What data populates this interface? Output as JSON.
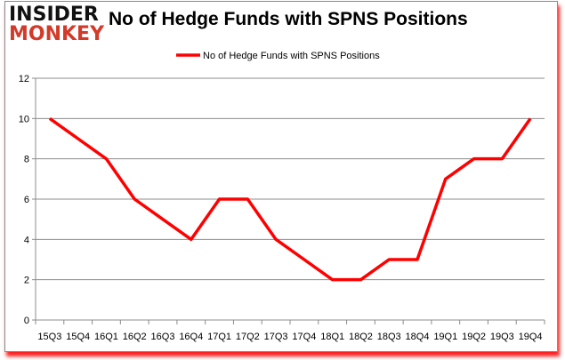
{
  "logo": {
    "line1": "INSIDER",
    "line2": "MONKEY"
  },
  "chart_data": {
    "type": "line",
    "title": "No of Hedge Funds with SPNS Positions",
    "xlabel": "",
    "ylabel": "",
    "categories": [
      "15Q3",
      "15Q4",
      "16Q1",
      "16Q2",
      "16Q3",
      "16Q4",
      "17Q1",
      "17Q2",
      "17Q3",
      "17Q4",
      "18Q1",
      "18Q2",
      "18Q3",
      "18Q4",
      "19Q1",
      "19Q2",
      "19Q3",
      "19Q4"
    ],
    "series": [
      {
        "name": "No of Hedge Funds with SPNS Positions",
        "values": [
          10,
          9,
          8,
          6,
          5,
          4,
          6,
          6,
          4,
          3,
          2,
          2,
          3,
          3,
          7,
          8,
          8,
          10
        ],
        "color": "#ff0000"
      }
    ],
    "ylim": [
      0,
      12
    ],
    "yticks": [
      0,
      2,
      4,
      6,
      8,
      10,
      12
    ],
    "grid": true,
    "legend": "top-center"
  }
}
